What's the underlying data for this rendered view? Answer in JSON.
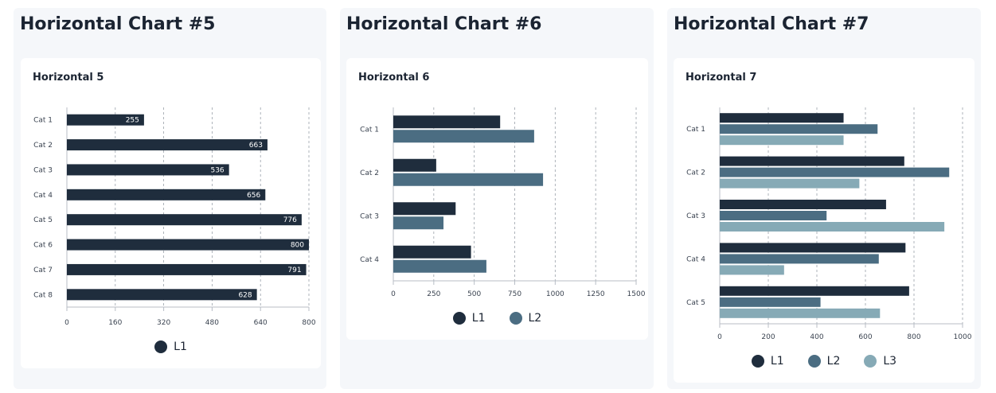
{
  "colors": {
    "L1": "#1f2d3d",
    "L2": "#4b6d82",
    "L3": "#86aab6"
  },
  "panels": [
    {
      "title": "Horizontal Chart #5",
      "card_title": "Horizontal 5"
    },
    {
      "title": "Horizontal Chart #6",
      "card_title": "Horizontal 6"
    },
    {
      "title": "Horizontal Chart #7",
      "card_title": "Horizontal 7"
    }
  ],
  "chart_data": [
    {
      "type": "bar",
      "orientation": "horizontal",
      "title": "Horizontal 5",
      "categories": [
        "Cat 1",
        "Cat 2",
        "Cat 3",
        "Cat 4",
        "Cat 5",
        "Cat 6",
        "Cat 7",
        "Cat 8"
      ],
      "series": [
        {
          "name": "L1",
          "color": "#1f2d3d",
          "values": [
            255,
            663,
            536,
            656,
            776,
            800,
            791,
            628
          ]
        }
      ],
      "xlim": [
        0,
        800
      ],
      "xticks": [
        0,
        160,
        320,
        480,
        640,
        800
      ],
      "data_labels": true,
      "grid": "vertical dashed",
      "legend": "bottom-center"
    },
    {
      "type": "bar",
      "orientation": "horizontal",
      "title": "Horizontal 6",
      "categories": [
        "Cat 1",
        "Cat 2",
        "Cat 3",
        "Cat 4"
      ],
      "series": [
        {
          "name": "L1",
          "color": "#1f2d3d",
          "values": [
            660,
            265,
            385,
            480
          ]
        },
        {
          "name": "L2",
          "color": "#4b6d82",
          "values": [
            870,
            925,
            310,
            575
          ]
        }
      ],
      "xlim": [
        0,
        1500
      ],
      "xticks": [
        0,
        250,
        500,
        750,
        1000,
        1250,
        1500
      ],
      "data_labels": false,
      "grid": "vertical dashed",
      "legend": "bottom-center"
    },
    {
      "type": "bar",
      "orientation": "horizontal",
      "title": "Horizontal 7",
      "categories": [
        "Cat 1",
        "Cat 2",
        "Cat 3",
        "Cat 4",
        "Cat 5"
      ],
      "series": [
        {
          "name": "L1",
          "color": "#1f2d3d",
          "values": [
            510,
            760,
            685,
            765,
            780
          ]
        },
        {
          "name": "L2",
          "color": "#4b6d82",
          "values": [
            650,
            945,
            440,
            655,
            415
          ]
        },
        {
          "name": "L3",
          "color": "#86aab6",
          "values": [
            510,
            575,
            925,
            265,
            660
          ]
        }
      ],
      "xlim": [
        0,
        1000
      ],
      "xticks": [
        0,
        200,
        400,
        600,
        800,
        1000
      ],
      "data_labels": false,
      "grid": "vertical dashed",
      "legend": "bottom-center"
    }
  ]
}
